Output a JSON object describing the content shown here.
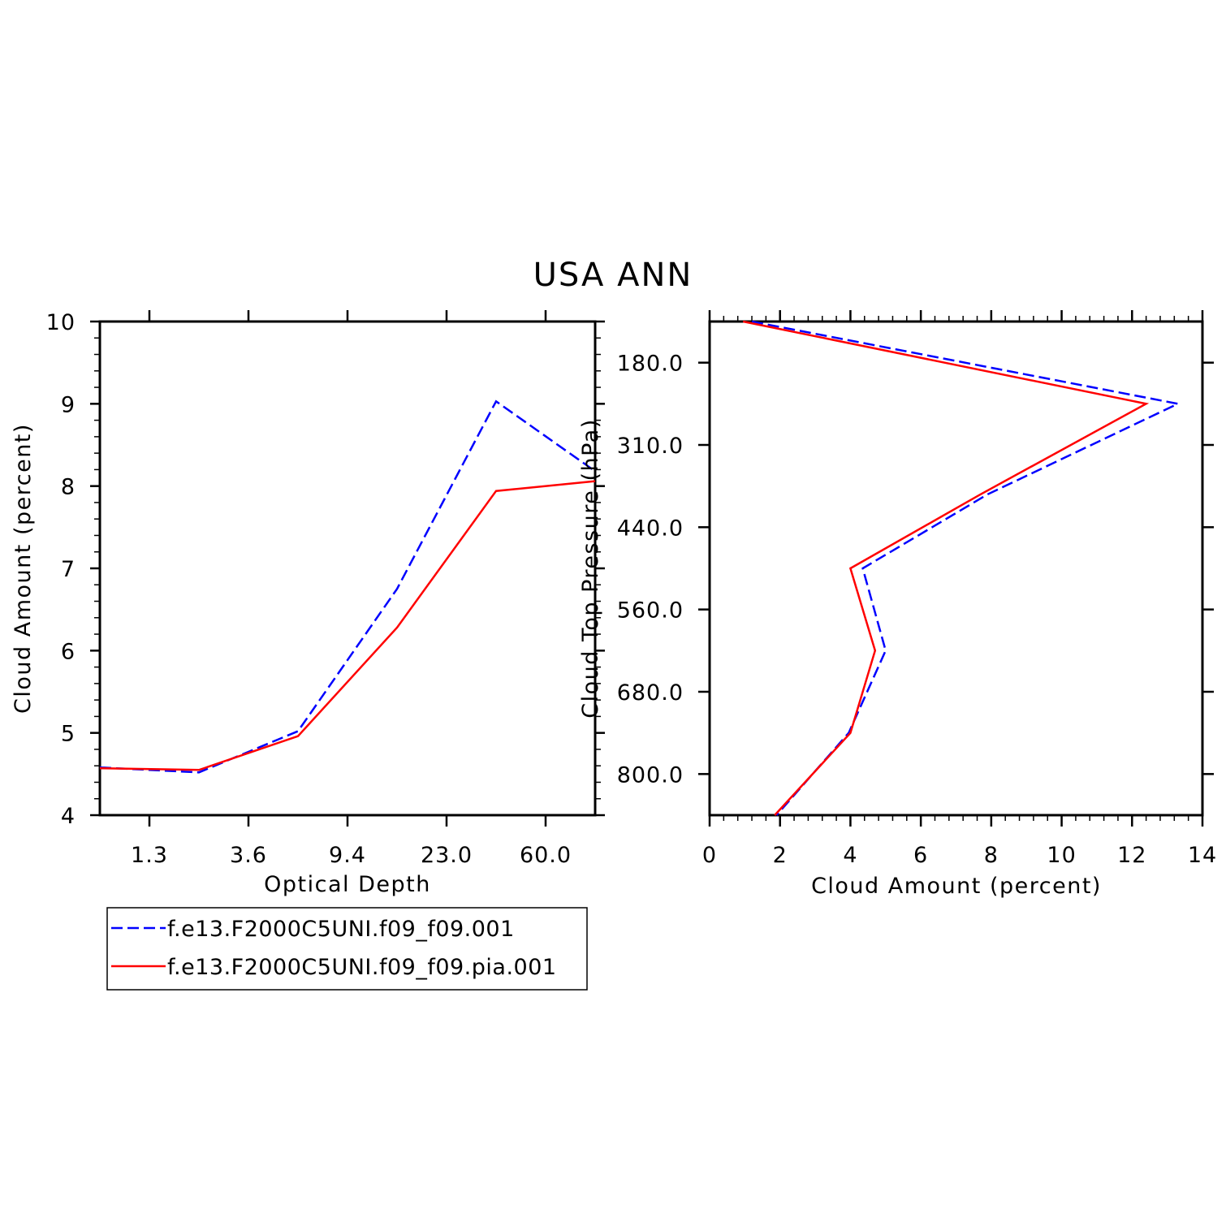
{
  "title": "USA ANN",
  "legend": {
    "entries": [
      {
        "label": "f.e13.F2000C5UNI.f09_f09.001",
        "color": "#0000ff",
        "dash": true
      },
      {
        "label": "f.e13.F2000C5UNI.f09_f09.pia.001",
        "color": "#ff0000",
        "dash": false
      }
    ]
  },
  "chart_data": [
    {
      "type": "line",
      "name": "optical-depth-panel",
      "xlabel": "Optical Depth",
      "ylabel": "Cloud Amount (percent)",
      "x": [
        0,
        1,
        2,
        3,
        4,
        5
      ],
      "xlim": [
        -0.5,
        4.5
      ],
      "xtick_positions": [
        0,
        1,
        2,
        3,
        4
      ],
      "xtick_labels": [
        "1.3",
        "3.6",
        "9.4",
        "23.0",
        "60.0"
      ],
      "ylim": [
        4,
        10
      ],
      "yticks": [
        4,
        5,
        6,
        7,
        8,
        9,
        10
      ],
      "series": [
        {
          "name": "f.e13.F2000C5UNI.f09_f09.001",
          "color": "#0000ff",
          "dash": true,
          "x": [
            -0.5,
            0.5,
            1.5,
            2.5,
            3.5,
            4.5
          ],
          "values": [
            4.58,
            4.52,
            5.02,
            6.75,
            9.03,
            8.18
          ]
        },
        {
          "name": "f.e13.F2000C5UNI.f09_f09.pia.001",
          "color": "#ff0000",
          "dash": false,
          "x": [
            -0.5,
            0.5,
            1.5,
            2.5,
            3.5,
            4.5
          ],
          "values": [
            4.57,
            4.55,
            4.96,
            6.28,
            7.94,
            8.06
          ]
        }
      ]
    },
    {
      "type": "line",
      "name": "pressure-panel",
      "xlabel": "Cloud Amount (percent)",
      "ylabel": "Cloud Top Pressure (hPa)",
      "xlim": [
        0,
        14
      ],
      "xticks": [
        0,
        2,
        4,
        6,
        8,
        10,
        12,
        14
      ],
      "ylim": [
        0,
        6
      ],
      "ytick_positions": [
        0.5,
        1.5,
        2.5,
        3.5,
        4.5,
        5.5
      ],
      "ytick_labels": [
        "180.0",
        "310.0",
        "440.0",
        "560.0",
        "680.0",
        "800.0"
      ],
      "series": [
        {
          "name": "f.e13.F2000C5UNI.f09_f09.001",
          "color": "#0000ff",
          "dash": true,
          "x": [
            1.2,
            13.3,
            7.9,
            4.35,
            5.0,
            3.95,
            1.9
          ],
          "y": [
            0,
            1.0,
            2.1,
            3.0,
            4.0,
            5.0,
            6.0
          ]
        },
        {
          "name": "f.e13.F2000C5UNI.f09_f09.pia.001",
          "color": "#ff0000",
          "dash": false,
          "x": [
            0.95,
            12.4,
            7.7,
            4.0,
            4.7,
            4.0,
            1.85
          ],
          "y": [
            0,
            1.0,
            2.1,
            3.0,
            4.0,
            5.0,
            6.0
          ]
        }
      ]
    }
  ]
}
